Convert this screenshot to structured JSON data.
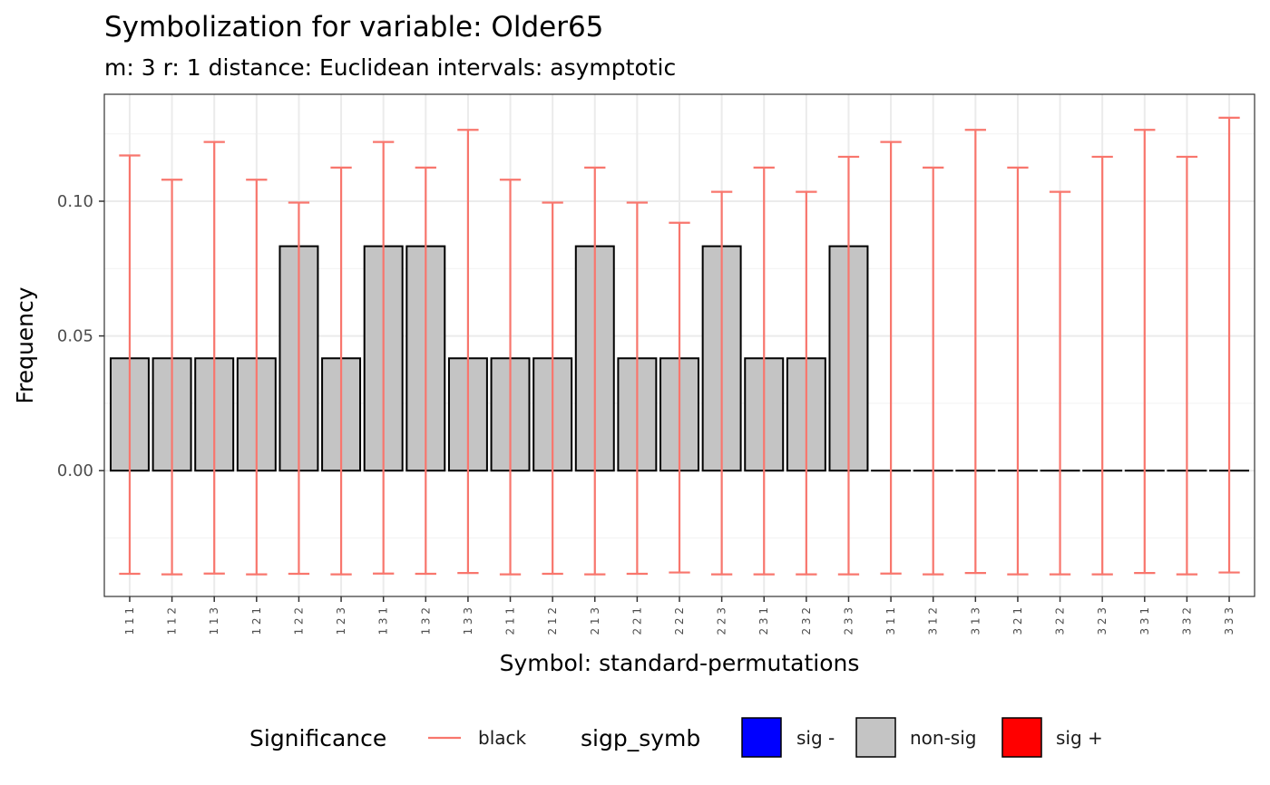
{
  "chart_data": {
    "type": "bar",
    "title": "Symbolization for variable: Older65",
    "subtitle": "m: 3  r:  1  distance:  Euclidean  intervals:  asymptotic",
    "xlabel": "Symbol: standard-permutations",
    "ylabel": "Frequency",
    "ylim": [
      -0.0467,
      0.1397
    ],
    "yticks": [
      0.0,
      0.05,
      0.1
    ],
    "ytick_labels": [
      "0.00",
      "0.05",
      "0.10"
    ],
    "grid": true,
    "categories": [
      "1 1 1",
      "1 1 2",
      "1 1 3",
      "1 2 1",
      "1 2 2",
      "1 2 3",
      "1 3 1",
      "1 3 2",
      "1 3 3",
      "2 1 1",
      "2 1 2",
      "2 1 3",
      "2 2 1",
      "2 2 2",
      "2 2 3",
      "2 3 1",
      "2 3 2",
      "2 3 3",
      "3 1 1",
      "3 1 2",
      "3 1 3",
      "3 2 1",
      "3 2 2",
      "3 2 3",
      "3 3 1",
      "3 3 2",
      "3 3 3"
    ],
    "values": [
      0.0417,
      0.0417,
      0.0417,
      0.0417,
      0.0833,
      0.0417,
      0.0833,
      0.0833,
      0.0417,
      0.0417,
      0.0417,
      0.0833,
      0.0417,
      0.0417,
      0.0833,
      0.0417,
      0.0417,
      0.0833,
      0,
      0,
      0,
      0,
      0,
      0,
      0,
      0,
      0
    ],
    "error_bars": {
      "upper": [
        0.117,
        0.108,
        0.122,
        0.108,
        0.0995,
        0.1125,
        0.122,
        0.1125,
        0.1265,
        0.108,
        0.0995,
        0.1125,
        0.0995,
        0.092,
        0.1035,
        0.1125,
        0.1035,
        0.1165,
        0.122,
        0.1125,
        0.1265,
        0.1125,
        0.1035,
        0.1165,
        0.1265,
        0.1165,
        0.131
      ],
      "lower": [
        -0.0383,
        -0.0385,
        -0.0382,
        -0.0385,
        -0.0383,
        -0.0385,
        -0.0382,
        -0.0383,
        -0.038,
        -0.0385,
        -0.0383,
        -0.0385,
        -0.0383,
        -0.0378,
        -0.0385,
        -0.0385,
        -0.0385,
        -0.0385,
        -0.0382,
        -0.0385,
        -0.038,
        -0.0385,
        -0.0385,
        -0.0385,
        -0.038,
        -0.0385,
        -0.0378
      ],
      "color": "#F8766D"
    },
    "bar_fill": "#C4C4C4",
    "bar_stroke": "#000000",
    "legend": {
      "position": "bottom",
      "significance": {
        "title": "Significance",
        "items": [
          {
            "label": "black",
            "color": "#F8766D",
            "shape": "line"
          }
        ]
      },
      "sigp_symb": {
        "title": "sigp_symb",
        "items": [
          {
            "label": "sig -",
            "color": "#0000FF"
          },
          {
            "label": "non-sig",
            "color": "#C4C4C4"
          },
          {
            "label": "sig +",
            "color": "#FF0000"
          }
        ]
      }
    }
  }
}
